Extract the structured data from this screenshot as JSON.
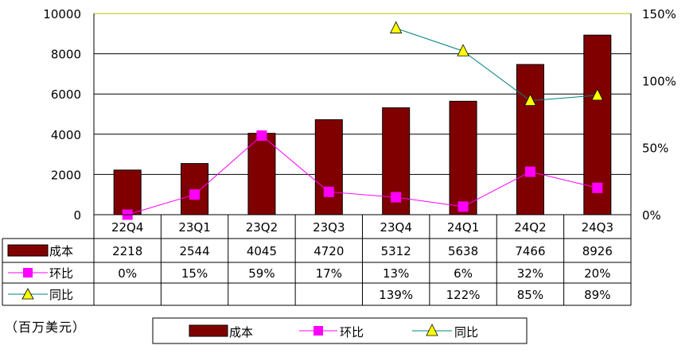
{
  "unit_label": "（百万美元）",
  "chart_data": {
    "type": "bar",
    "categories": [
      "22Q4",
      "23Q1",
      "23Q2",
      "23Q3",
      "23Q4",
      "24Q1",
      "24Q2",
      "24Q3"
    ],
    "ylim": [
      0,
      10000
    ],
    "y_ticks": [
      "0",
      "2000",
      "4000",
      "6000",
      "8000",
      "10000"
    ],
    "y2lim": [
      0,
      150
    ],
    "y2_ticks": [
      "0%",
      "50%",
      "100%",
      "150%"
    ],
    "grid": true,
    "legend_position": "bottom",
    "series": [
      {
        "name": "成本",
        "type": "bar",
        "axis": "left",
        "color": "#800000",
        "values": [
          2218,
          2544,
          4045,
          4720,
          5312,
          5638,
          7466,
          8926
        ],
        "table_values": [
          "2218",
          "2544",
          "4045",
          "4720",
          "5312",
          "5638",
          "7466",
          "8926"
        ]
      },
      {
        "name": "环比",
        "type": "line",
        "axis": "right",
        "color": "#ff00ff",
        "marker": "square",
        "values": [
          0,
          15,
          59,
          17,
          13,
          6,
          32,
          20
        ],
        "table_values": [
          "0%",
          "15%",
          "59%",
          "17%",
          "13%",
          "6%",
          "32%",
          "20%"
        ]
      },
      {
        "name": "同比",
        "type": "line",
        "axis": "right",
        "color": "#008080",
        "marker": "triangle",
        "marker_color": "#ffff00",
        "values": [
          null,
          null,
          null,
          null,
          139,
          122,
          85,
          89
        ],
        "table_values": [
          "",
          "",
          "",
          "",
          "139%",
          "122%",
          "85%",
          "89%"
        ]
      }
    ]
  }
}
